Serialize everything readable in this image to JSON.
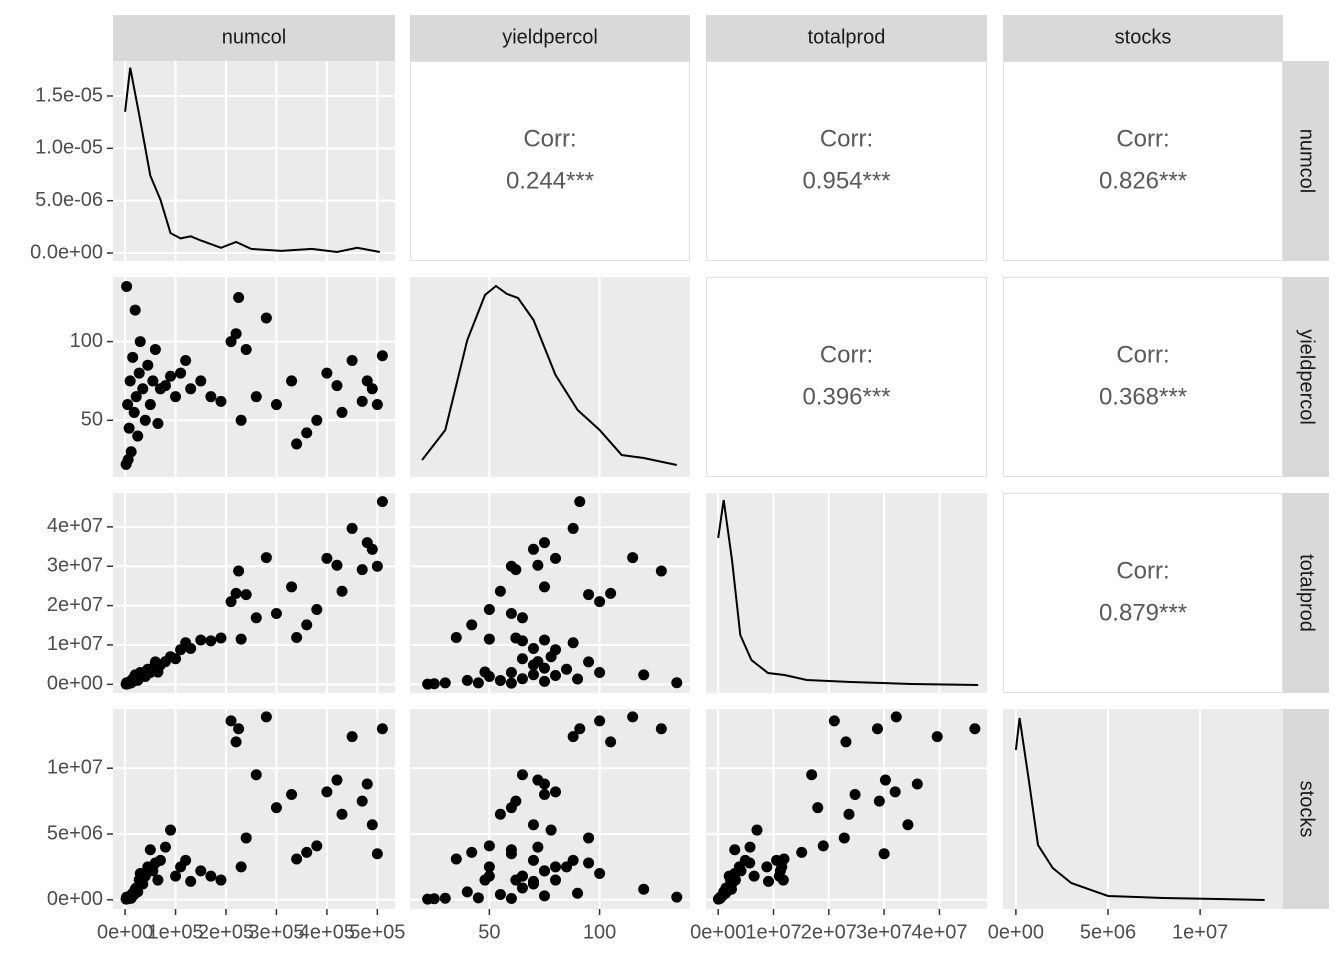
{
  "chart_data": {
    "type": "pairs",
    "variables": [
      "numcol",
      "yieldpercol",
      "totalprod",
      "stocks"
    ],
    "axes": [
      {
        "lim": [
          -24000,
          535000
        ],
        "ticks": [
          {
            "value": 0,
            "label": "0e+00"
          },
          {
            "value": 100000,
            "label": "1e+05"
          },
          {
            "value": 200000,
            "label": "2e+05"
          },
          {
            "value": 300000,
            "label": "3e+05"
          },
          {
            "value": 400000,
            "label": "4e+05"
          },
          {
            "value": 500000,
            "label": "5e+05"
          }
        ]
      },
      {
        "lim": [
          14,
          141
        ],
        "ticks": [
          50,
          100
        ]
      },
      {
        "lim": [
          -2200000,
          48600000
        ],
        "ticks": [
          {
            "value": 0,
            "label": "0e+00"
          },
          {
            "value": 10000000,
            "label": "1e+07"
          },
          {
            "value": 20000000,
            "label": "2e+07"
          },
          {
            "value": 30000000,
            "label": "3e+07"
          },
          {
            "value": 40000000,
            "label": "4e+07"
          }
        ]
      },
      {
        "lim": [
          -700000,
          14500000
        ],
        "ticks": [
          {
            "value": 0,
            "label": "0e+00"
          },
          {
            "value": 5000000,
            "label": "5e+06"
          },
          {
            "value": 10000000,
            "label": "1e+07"
          }
        ]
      }
    ],
    "density_axis": {
      "lim": [
        -7.6e-07,
        1.834e-05
      ],
      "ticks": [
        {
          "value": 0,
          "label": "0.0e+00"
        },
        {
          "value": 5e-06,
          "label": "5.0e-06"
        },
        {
          "value": 1e-05,
          "label": "1.0e-05"
        },
        {
          "value": 1.5e-05,
          "label": "1.5e-05"
        }
      ]
    },
    "densities": [
      {
        "ylim": [
          -7.6e-07,
          1.834e-05
        ],
        "x": [
          0,
          10000,
          30000,
          50000,
          70000,
          90000,
          110000,
          130000,
          150000,
          190000,
          220000,
          250000,
          310000,
          370000,
          420000,
          460000,
          505000
        ],
        "y": [
          1.35e-05,
          1.77e-05,
          1.27e-05,
          7.4e-06,
          5.1e-06,
          1.9e-06,
          1.4e-06,
          1.6e-06,
          1.2e-06,
          5e-07,
          1.05e-06,
          4e-07,
          2e-07,
          4e-07,
          1e-07,
          5e-07,
          1e-07
        ]
      },
      {
        "ylim": [
          -0.0008,
          0.0192
        ],
        "x": [
          19.5,
          30,
          40,
          48,
          53,
          58,
          63,
          70,
          80,
          90,
          100,
          110,
          120,
          135
        ],
        "y": [
          0.0009,
          0.0039,
          0.0129,
          0.0174,
          0.0183,
          0.0175,
          0.0171,
          0.0149,
          0.0094,
          0.0059,
          0.0039,
          0.0014,
          0.0011,
          0.0004
        ]
      },
      {
        "ylim": [
          -1.4e-09,
          3.86e-08
        ],
        "x": [
          0,
          1000000,
          2500000,
          4000000,
          6000000,
          9000000,
          12000000,
          16000000,
          24000000,
          35000000,
          47000000
        ],
        "y": [
          2.96e-08,
          3.72e-08,
          2.52e-08,
          1.02e-08,
          5.2e-09,
          2.6e-09,
          2.2e-09,
          1.2e-09,
          8e-10,
          4e-10,
          2e-10
        ]
      },
      {
        "ylim": [
          -8e-09,
          1.92e-07
        ],
        "x": [
          0,
          200000,
          700000,
          1200000,
          2000000,
          3000000,
          5000000,
          8000000,
          11000000,
          13500000
        ],
        "y": [
          1.51e-07,
          1.83e-07,
          1.21e-07,
          5.6e-08,
          3.3e-08,
          1.8e-08,
          5e-09,
          3e-09,
          2e-09,
          1e-09
        ]
      }
    ],
    "correlations": [
      {
        "title": "Corr:",
        "value": "0.244***"
      },
      {
        "title": "Corr:",
        "value": "0.954***"
      },
      {
        "title": "Corr:",
        "value": "0.826***"
      },
      {
        "title": "Corr:",
        "value": "0.396***"
      },
      {
        "title": "Corr:",
        "value": "0.368***"
      },
      {
        "title": "Corr:",
        "value": "0.879***"
      }
    ],
    "observations": [
      [
        5000,
        60,
        300000,
        100000
      ],
      [
        8000,
        45,
        360000,
        150000
      ],
      [
        10000,
        75,
        750000,
        300000
      ],
      [
        12000,
        30,
        360000,
        120000
      ],
      [
        15000,
        90,
        1350000,
        500000
      ],
      [
        18000,
        55,
        990000,
        400000
      ],
      [
        20000,
        120,
        2400000,
        800000
      ],
      [
        22000,
        65,
        1430000,
        900000
      ],
      [
        25000,
        40,
        1000000,
        600000
      ],
      [
        28000,
        80,
        2240000,
        1500000
      ],
      [
        30000,
        100,
        3000000,
        2000000
      ],
      [
        35000,
        70,
        2450000,
        1200000
      ],
      [
        40000,
        50,
        2000000,
        1800000
      ],
      [
        45000,
        85,
        3825000,
        2500000
      ],
      [
        50000,
        60,
        3000000,
        3800000
      ],
      [
        55000,
        75,
        4125000,
        2200000
      ],
      [
        60000,
        95,
        5700000,
        2800000
      ],
      [
        65000,
        48,
        3120000,
        1500000
      ],
      [
        70000,
        70,
        4900000,
        3000000
      ],
      [
        80000,
        72,
        5760000,
        4000000
      ],
      [
        90000,
        78,
        7020000,
        5300000
      ],
      [
        100000,
        65,
        6500000,
        1800000
      ],
      [
        110000,
        80,
        8800000,
        2500000
      ],
      [
        120000,
        88,
        10560000,
        3000000
      ],
      [
        130000,
        70,
        9100000,
        1400000
      ],
      [
        150000,
        75,
        11250000,
        2200000
      ],
      [
        170000,
        65,
        11050000,
        1800000
      ],
      [
        190000,
        62,
        11780000,
        1500000
      ],
      [
        210000,
        100,
        21000000,
        13600000
      ],
      [
        220000,
        105,
        23100000,
        12000000
      ],
      [
        225000,
        128,
        28800000,
        13000000
      ],
      [
        230000,
        50,
        11500000,
        2500000
      ],
      [
        240000,
        95,
        22800000,
        4700000
      ],
      [
        260000,
        65,
        16900000,
        9500000
      ],
      [
        280000,
        115,
        32200000,
        13900000
      ],
      [
        300000,
        60,
        18000000,
        7000000
      ],
      [
        330000,
        75,
        24750000,
        8000000
      ],
      [
        340000,
        35,
        11900000,
        3100000
      ],
      [
        360000,
        42,
        15100000,
        3600000
      ],
      [
        380000,
        50,
        19000000,
        4100000
      ],
      [
        400000,
        80,
        32000000,
        8200000
      ],
      [
        420000,
        72,
        30240000,
        9100000
      ],
      [
        430000,
        55,
        23650000,
        6500000
      ],
      [
        450000,
        88,
        39600000,
        12400000
      ],
      [
        470000,
        62,
        29140000,
        7500000
      ],
      [
        480000,
        75,
        36000000,
        8800000
      ],
      [
        490000,
        70,
        34300000,
        5700000
      ],
      [
        500000,
        60,
        30000000,
        3500000
      ],
      [
        510000,
        91,
        46410000,
        13000000
      ],
      [
        3000,
        135,
        405000,
        200000
      ],
      [
        2000,
        22,
        44000,
        50000
      ],
      [
        6000,
        25,
        150000,
        80000
      ]
    ]
  }
}
